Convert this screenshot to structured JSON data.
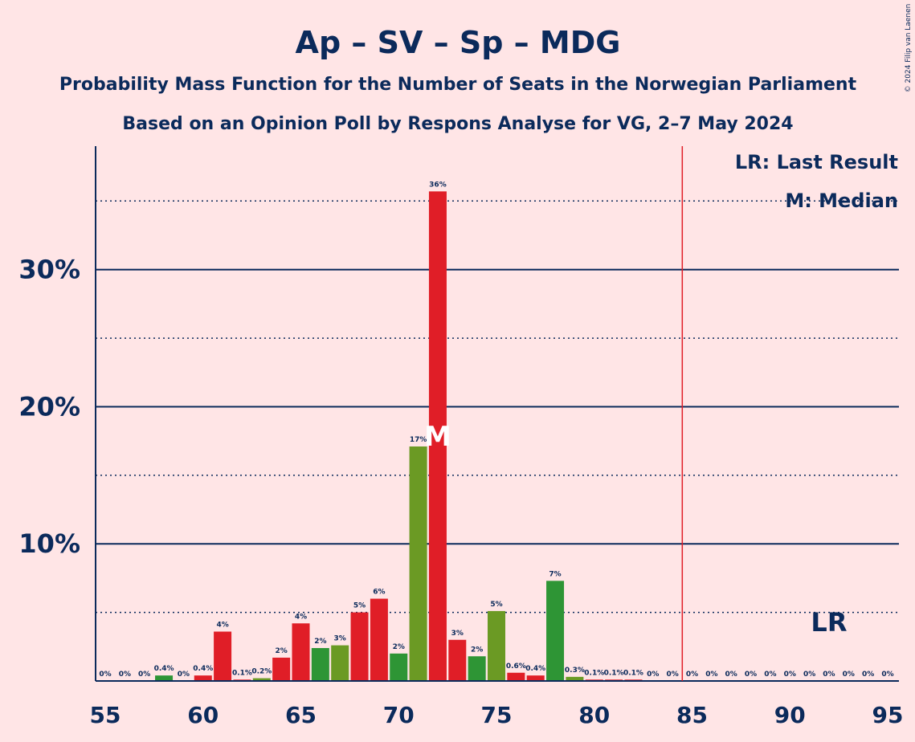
{
  "chart_data": {
    "type": "bar",
    "title": "Ap – SV – Sp – MDG",
    "subtitle1": "Probability Mass Function for the Number of Seats in the Norwegian Parliament",
    "subtitle2": "Based on an Opinion Poll by Respons Analyse for VG, 2–7 May 2024",
    "copyright": "© 2024 Filip van Laenen",
    "legend": {
      "lr": "LR: Last Result",
      "median": "M: Median"
    },
    "last_result_label": "LR",
    "median_label": "M",
    "last_result_seat": 85,
    "median_seat": 72,
    "xlim": [
      55,
      95
    ],
    "ylim": [
      0,
      0.39
    ],
    "x_ticks": [
      55,
      60,
      65,
      70,
      75,
      80,
      85,
      90,
      95
    ],
    "y_ticks": [
      {
        "value": 0.1,
        "label": "10%"
      },
      {
        "value": 0.2,
        "label": "20%"
      },
      {
        "value": 0.3,
        "label": "30%"
      }
    ],
    "y_dotted": [
      0.05,
      0.15,
      0.25,
      0.35
    ],
    "colors": {
      "red": "#E01E27",
      "green": "#6B9A24",
      "darkgreen": "#2E9535",
      "background": "#FFE5E6",
      "navy": "#0B2A5B"
    },
    "bars": [
      {
        "seat": 55,
        "value": 0.0,
        "label": "0%",
        "color": "red"
      },
      {
        "seat": 56,
        "value": 0.0,
        "label": "0%",
        "color": "red"
      },
      {
        "seat": 57,
        "value": 0.0,
        "label": "0%",
        "color": "red"
      },
      {
        "seat": 58,
        "value": 0.004,
        "label": "0.4%",
        "color": "darkgreen"
      },
      {
        "seat": 59,
        "value": 0.0,
        "label": "0%",
        "color": "red"
      },
      {
        "seat": 60,
        "value": 0.004,
        "label": "0.4%",
        "color": "red"
      },
      {
        "seat": 61,
        "value": 0.036,
        "label": "4%",
        "color": "red"
      },
      {
        "seat": 62,
        "value": 0.001,
        "label": "0.1%",
        "color": "red"
      },
      {
        "seat": 63,
        "value": 0.002,
        "label": "0.2%",
        "color": "green"
      },
      {
        "seat": 64,
        "value": 0.017,
        "label": "2%",
        "color": "red"
      },
      {
        "seat": 65,
        "value": 0.042,
        "label": "4%",
        "color": "red"
      },
      {
        "seat": 66,
        "value": 0.024,
        "label": "2%",
        "color": "darkgreen"
      },
      {
        "seat": 67,
        "value": 0.026,
        "label": "3%",
        "color": "green"
      },
      {
        "seat": 68,
        "value": 0.05,
        "label": "5%",
        "color": "red"
      },
      {
        "seat": 69,
        "value": 0.06,
        "label": "6%",
        "color": "red"
      },
      {
        "seat": 70,
        "value": 0.02,
        "label": "2%",
        "color": "darkgreen"
      },
      {
        "seat": 71,
        "value": 0.171,
        "label": "17%",
        "color": "green"
      },
      {
        "seat": 72,
        "value": 0.357,
        "label": "36%",
        "color": "red"
      },
      {
        "seat": 73,
        "value": 0.03,
        "label": "3%",
        "color": "red"
      },
      {
        "seat": 74,
        "value": 0.018,
        "label": "2%",
        "color": "darkgreen"
      },
      {
        "seat": 75,
        "value": 0.051,
        "label": "5%",
        "color": "green"
      },
      {
        "seat": 76,
        "value": 0.006,
        "label": "0.6%",
        "color": "red"
      },
      {
        "seat": 77,
        "value": 0.004,
        "label": "0.4%",
        "color": "red"
      },
      {
        "seat": 78,
        "value": 0.073,
        "label": "7%",
        "color": "darkgreen"
      },
      {
        "seat": 79,
        "value": 0.003,
        "label": "0.3%",
        "color": "green"
      },
      {
        "seat": 80,
        "value": 0.001,
        "label": "0.1%",
        "color": "red"
      },
      {
        "seat": 81,
        "value": 0.001,
        "label": "0.1%",
        "color": "red"
      },
      {
        "seat": 82,
        "value": 0.001,
        "label": "0.1%",
        "color": "red"
      },
      {
        "seat": 83,
        "value": 0.0,
        "label": "0%",
        "color": "red"
      },
      {
        "seat": 84,
        "value": 0.0,
        "label": "0%",
        "color": "red"
      },
      {
        "seat": 85,
        "value": 0.0,
        "label": "0%",
        "color": "red"
      },
      {
        "seat": 86,
        "value": 0.0,
        "label": "0%",
        "color": "red"
      },
      {
        "seat": 87,
        "value": 0.0,
        "label": "0%",
        "color": "red"
      },
      {
        "seat": 88,
        "value": 0.0,
        "label": "0%",
        "color": "red"
      },
      {
        "seat": 89,
        "value": 0.0,
        "label": "0%",
        "color": "red"
      },
      {
        "seat": 90,
        "value": 0.0,
        "label": "0%",
        "color": "red"
      },
      {
        "seat": 91,
        "value": 0.0,
        "label": "0%",
        "color": "red"
      },
      {
        "seat": 92,
        "value": 0.0,
        "label": "0%",
        "color": "red"
      },
      {
        "seat": 93,
        "value": 0.0,
        "label": "0%",
        "color": "red"
      },
      {
        "seat": 94,
        "value": 0.0,
        "label": "0%",
        "color": "red"
      },
      {
        "seat": 95,
        "value": 0.0,
        "label": "0%",
        "color": "red"
      }
    ]
  }
}
